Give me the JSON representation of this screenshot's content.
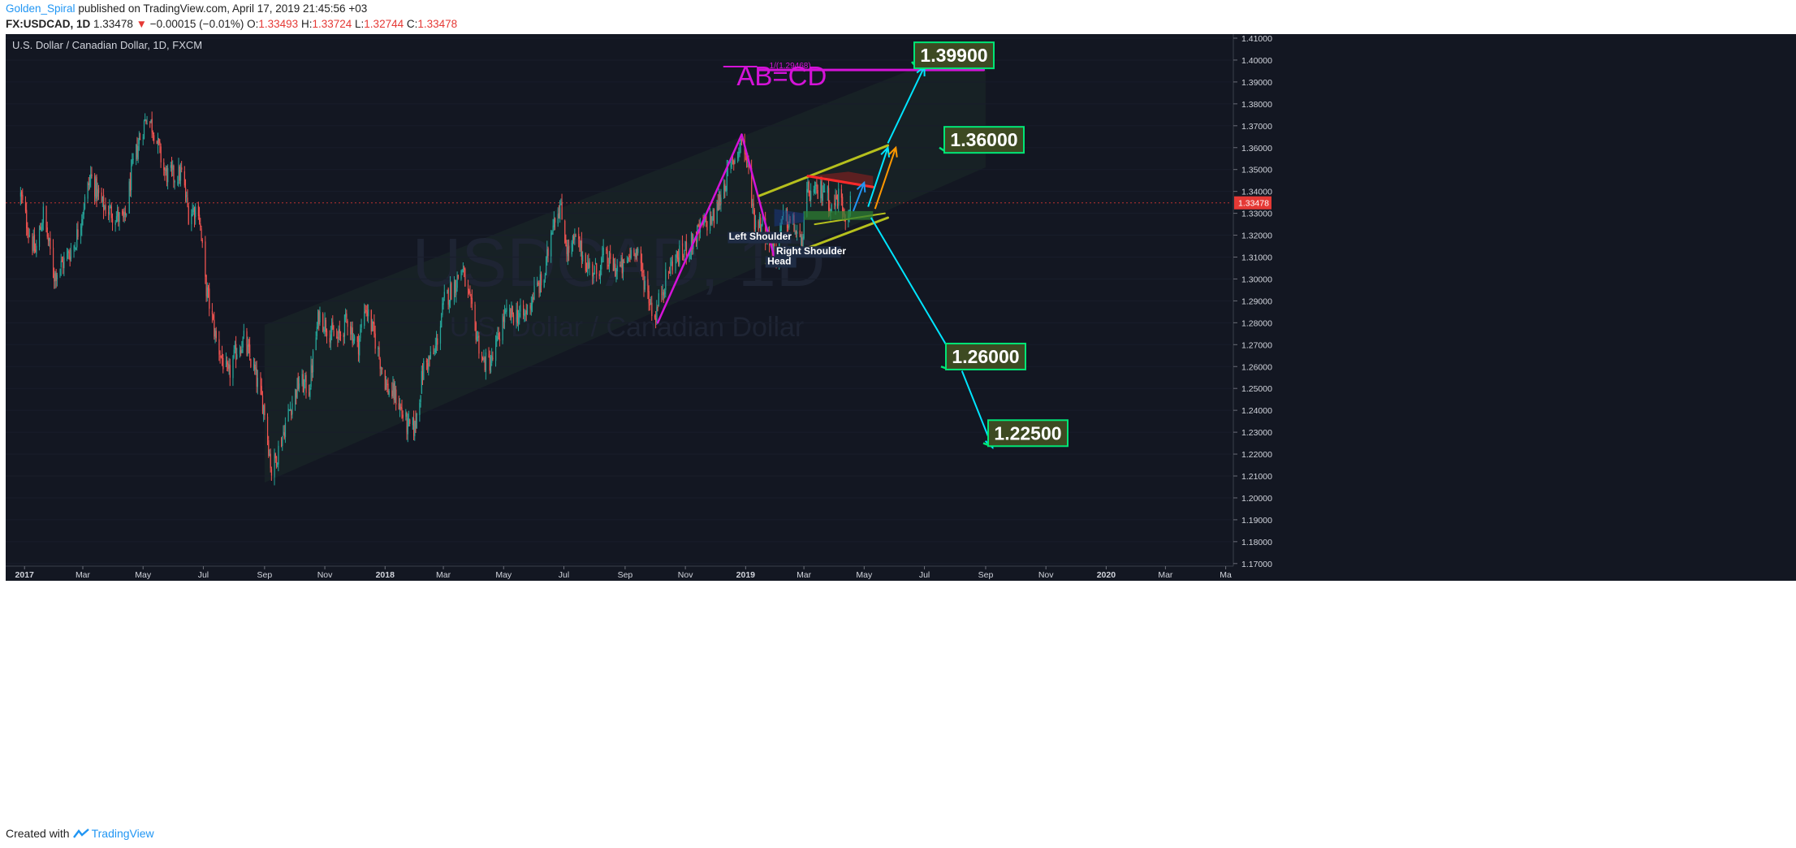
{
  "header": {
    "author": "Golden_Spiral",
    "published_text": "published on TradingView.com, April 17, 2019 21:45:56 +03",
    "symbol": "FX:USDCAD, 1D",
    "last": "1.33478",
    "change": "−0.00015 (−0.01%)",
    "open_label": "O:",
    "open": "1.33493",
    "high_label": "H:",
    "high": "1.33724",
    "low_label": "L:",
    "low": "1.32744",
    "close_label": "C:",
    "close": "1.33478"
  },
  "footer": {
    "created_with": "Created with",
    "brand": "TradingView"
  },
  "chart_data": {
    "type": "candlestick",
    "title": "U.S. Dollar / Canadian Dollar, 1D, FXCM",
    "watermark_symbol": "USDCAD, 1D",
    "watermark_name": "U.S. Dollar / Canadian Dollar",
    "ylim": [
      1.17,
      1.415
    ],
    "y_ticks": [
      "1.41000",
      "1.40000",
      "1.39000",
      "1.38000",
      "1.37000",
      "1.36000",
      "1.35000",
      "1.34000",
      "1.33000",
      "1.32000",
      "1.31000",
      "1.30000",
      "1.29000",
      "1.28000",
      "1.27000",
      "1.26000",
      "1.25000",
      "1.24000",
      "1.23000",
      "1.22000",
      "1.21000",
      "1.20000",
      "1.19000",
      "1.18000",
      "1.17000"
    ],
    "x_ticks": [
      "2017",
      "Mar",
      "May",
      "Jul",
      "Sep",
      "Nov",
      "2018",
      "Mar",
      "May",
      "Jul",
      "Sep",
      "Nov",
      "2019",
      "Mar",
      "May",
      "Jul",
      "Sep",
      "Nov",
      "2020",
      "Mar",
      "Ma"
    ],
    "current_price_label": "1.33478",
    "close_points": [
      [
        "2016-12-28",
        1.338
      ],
      [
        "2017-01-05",
        1.322
      ],
      [
        "2017-01-12",
        1.312
      ],
      [
        "2017-01-20",
        1.33
      ],
      [
        "2017-01-31",
        1.302
      ],
      [
        "2017-02-10",
        1.308
      ],
      [
        "2017-02-21",
        1.316
      ],
      [
        "2017-02-28",
        1.33
      ],
      [
        "2017-03-09",
        1.347
      ],
      [
        "2017-03-20",
        1.334
      ],
      [
        "2017-03-31",
        1.33
      ],
      [
        "2017-04-12",
        1.326
      ],
      [
        "2017-04-20",
        1.35
      ],
      [
        "2017-04-28",
        1.365
      ],
      [
        "2017-05-05",
        1.375
      ],
      [
        "2017-05-12",
        1.368
      ],
      [
        "2017-05-23",
        1.348
      ],
      [
        "2017-06-02",
        1.347
      ],
      [
        "2017-06-09",
        1.348
      ],
      [
        "2017-06-16",
        1.33
      ],
      [
        "2017-06-26",
        1.333
      ],
      [
        "2017-07-03",
        1.298
      ],
      [
        "2017-07-14",
        1.272
      ],
      [
        "2017-07-26",
        1.255
      ],
      [
        "2017-08-04",
        1.268
      ],
      [
        "2017-08-11",
        1.272
      ],
      [
        "2017-08-22",
        1.257
      ],
      [
        "2017-09-01",
        1.24
      ],
      [
        "2017-09-08",
        1.212
      ],
      [
        "2017-09-15",
        1.222
      ],
      [
        "2017-09-26",
        1.24
      ],
      [
        "2017-10-06",
        1.253
      ],
      [
        "2017-10-16",
        1.25
      ],
      [
        "2017-10-26",
        1.284
      ],
      [
        "2017-11-06",
        1.276
      ],
      [
        "2017-11-14",
        1.272
      ],
      [
        "2017-11-24",
        1.282
      ],
      [
        "2017-12-04",
        1.268
      ],
      [
        "2017-12-12",
        1.288
      ],
      [
        "2017-12-22",
        1.272
      ],
      [
        "2018-01-03",
        1.25
      ],
      [
        "2018-01-12",
        1.246
      ],
      [
        "2018-01-24",
        1.232
      ],
      [
        "2018-01-31",
        1.232
      ],
      [
        "2018-02-09",
        1.26
      ],
      [
        "2018-02-20",
        1.266
      ],
      [
        "2018-03-02",
        1.29
      ],
      [
        "2018-03-13",
        1.298
      ],
      [
        "2018-03-20",
        1.305
      ],
      [
        "2018-03-28",
        1.288
      ],
      [
        "2018-04-10",
        1.262
      ],
      [
        "2018-04-19",
        1.262
      ],
      [
        "2018-05-01",
        1.282
      ],
      [
        "2018-05-10",
        1.284
      ],
      [
        "2018-05-22",
        1.283
      ],
      [
        "2018-06-01",
        1.294
      ],
      [
        "2018-06-11",
        1.3
      ],
      [
        "2018-06-20",
        1.328
      ],
      [
        "2018-06-27",
        1.333
      ],
      [
        "2018-07-05",
        1.312
      ],
      [
        "2018-07-13",
        1.318
      ],
      [
        "2018-07-25",
        1.306
      ],
      [
        "2018-08-03",
        1.303
      ],
      [
        "2018-08-10",
        1.31
      ],
      [
        "2018-08-22",
        1.305
      ],
      [
        "2018-08-31",
        1.305
      ],
      [
        "2018-09-10",
        1.316
      ],
      [
        "2018-09-20",
        1.3
      ],
      [
        "2018-10-01",
        1.282
      ],
      [
        "2018-10-08",
        1.295
      ],
      [
        "2018-10-19",
        1.308
      ],
      [
        "2018-10-30",
        1.312
      ],
      [
        "2018-11-08",
        1.317
      ],
      [
        "2018-11-20",
        1.325
      ],
      [
        "2018-11-30",
        1.328
      ],
      [
        "2018-12-10",
        1.343
      ],
      [
        "2018-12-18",
        1.352
      ],
      [
        "2018-12-28",
        1.364
      ],
      [
        "2019-01-03",
        1.352
      ],
      [
        "2019-01-10",
        1.327
      ],
      [
        "2019-01-18",
        1.325
      ],
      [
        "2019-01-25",
        1.318
      ],
      [
        "2019-02-01",
        1.312
      ],
      [
        "2019-02-08",
        1.328
      ],
      [
        "2019-02-18",
        1.325
      ],
      [
        "2019-02-26",
        1.315
      ],
      [
        "2019-03-05",
        1.34
      ],
      [
        "2019-03-12",
        1.338
      ],
      [
        "2019-03-22",
        1.342
      ],
      [
        "2019-03-29",
        1.332
      ],
      [
        "2019-04-05",
        1.338
      ],
      [
        "2019-04-12",
        1.33
      ],
      [
        "2019-04-17",
        1.33478
      ]
    ],
    "annotations": {
      "left_shoulder": "Left Shoulder",
      "head": "Head",
      "right_shoulder": "Right Shoulder",
      "abcd_text": "AB=CD",
      "abcd_ratio": "1/(1.29468)",
      "targets": [
        "1.39900",
        "1.36000",
        "1.26000",
        "1.22500"
      ]
    },
    "colors": {
      "background": "#131722",
      "up": "#26a69a",
      "down": "#ef5350",
      "magenta": "#d413d8",
      "cyan": "#00e5ff",
      "olive": "#b6c01d",
      "orange": "#ff9800",
      "red_line": "#ff2a2a",
      "target_bg": "#3d4a22",
      "target_border": "#00e676"
    }
  }
}
